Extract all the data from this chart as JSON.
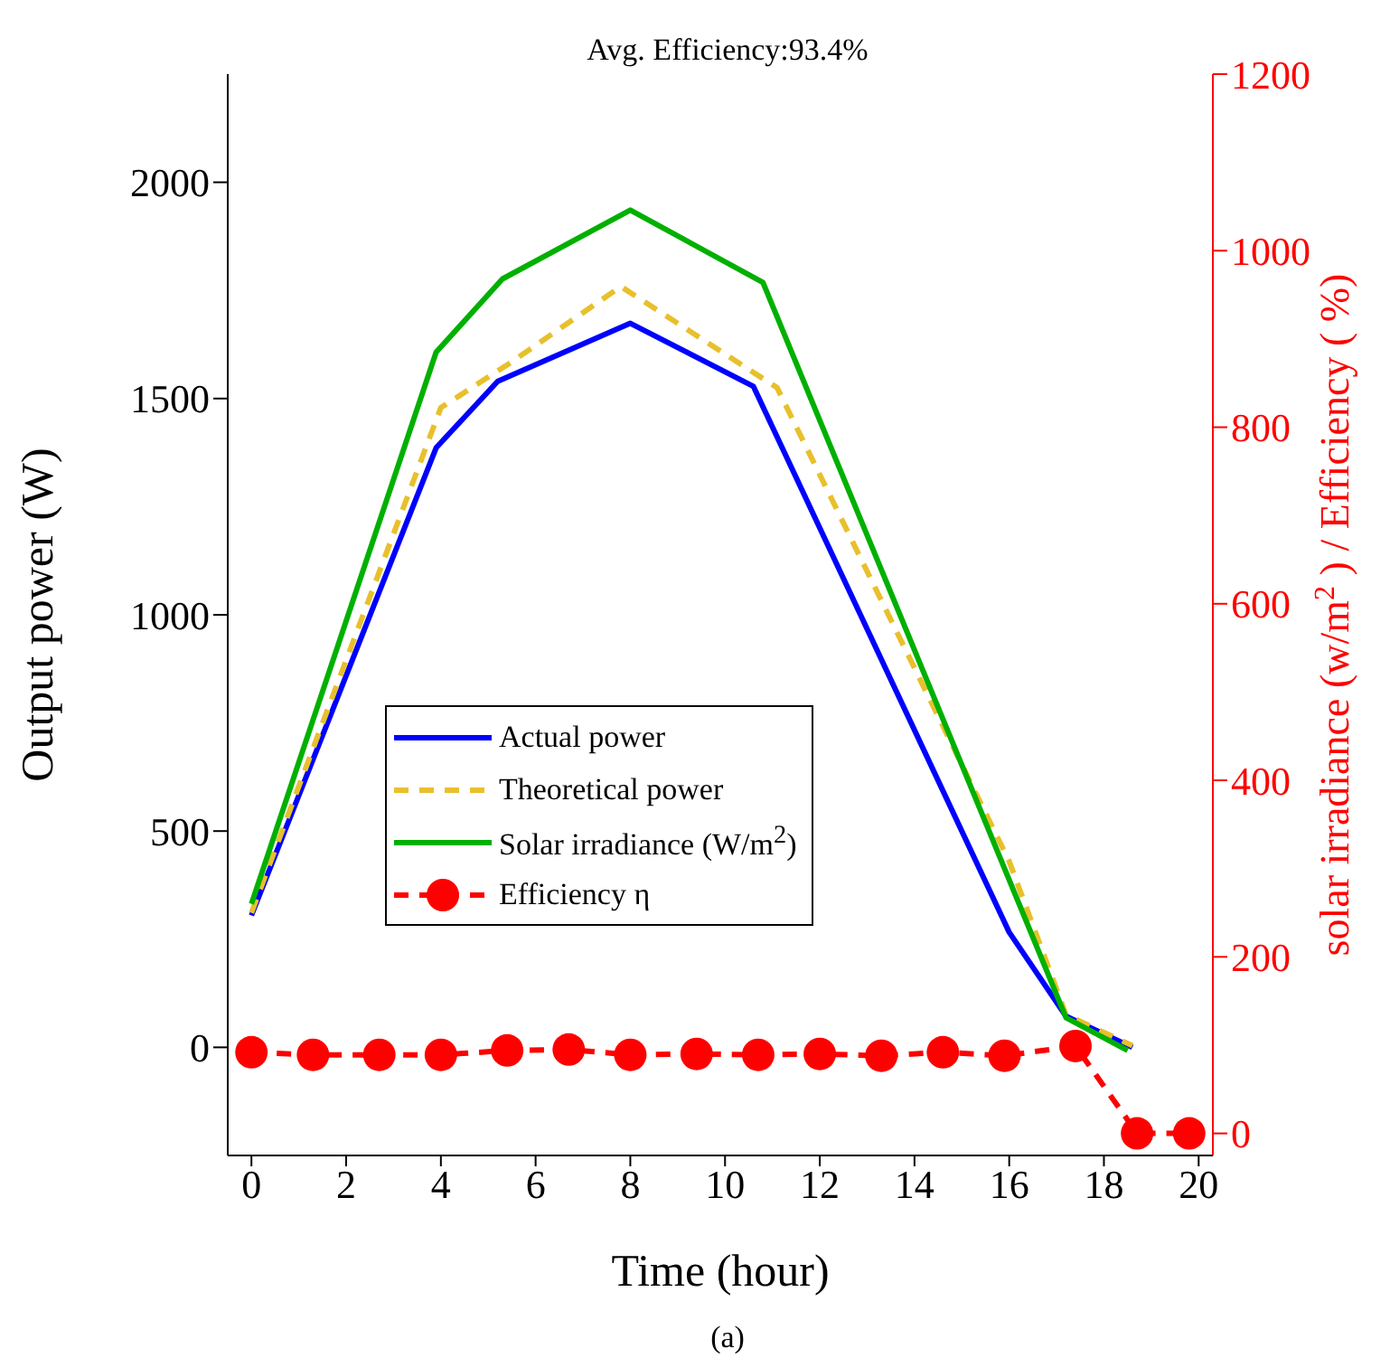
{
  "chart_data": {
    "type": "line",
    "title": "Avg. Efficiency:93.4%",
    "xlabel": "Time (hour)",
    "ylabel": "Output power (W)",
    "y2label": "solar irradiance (w/m$^{2}$) / Efficiency ( %)",
    "annotations": [
      "(a)"
    ],
    "xlim": [
      -0.5,
      20.3
    ],
    "xticks": [
      0,
      2,
      4,
      6,
      8,
      10,
      12,
      14,
      16,
      18,
      20
    ],
    "ylim": [
      -250,
      2250
    ],
    "yticks": [
      0,
      500,
      1000,
      1500,
      2000
    ],
    "y2lim": [
      -25,
      1200
    ],
    "y2ticks": [
      0,
      200,
      400,
      600,
      800,
      1000,
      1200
    ],
    "legend": "left",
    "series": [
      {
        "name": "Actual power",
        "color": "#0000ff",
        "line_style": "solid",
        "marker": "none",
        "x": [
          0,
          3.9,
          5.2,
          8,
          10.6,
          16,
          17.2,
          18.6
        ],
        "values": [
          305,
          1386,
          1540,
          1674,
          1528,
          266,
          72,
          0
        ]
      },
      {
        "name": "Theoretical power",
        "color": "#e8c02c",
        "line_style": "dashed",
        "marker": "none",
        "x": [
          0,
          4,
          5.5,
          7.8,
          11.1,
          16,
          17.2,
          18.6
        ],
        "values": [
          311,
          1479,
          1585,
          1759,
          1525,
          430,
          75,
          4
        ]
      },
      {
        "name": "Solar irradiance (W/m$^{2}$)",
        "color": "#00b000",
        "line_style": "solid",
        "marker": "none",
        "axis": "y2",
        "x": [
          0,
          3.9,
          5.3,
          8,
          10.8,
          17.2,
          18.5
        ],
        "values": [
          260,
          885,
          968,
          1046,
          964,
          131,
          94
        ]
      },
      {
        "name": "Efficiency η",
        "color": "#ff0000",
        "line_style": "dashed",
        "marker": "circle",
        "axis": "y2",
        "x": [
          0,
          1.3,
          2.7,
          4,
          5.4,
          6.7,
          8,
          9.4,
          10.7,
          12,
          13.3,
          14.6,
          15.9,
          17.4,
          18.7,
          19.8
        ],
        "values": [
          92,
          89,
          89,
          89,
          94,
          95,
          89,
          90,
          89,
          90,
          88,
          92,
          88,
          99,
          0,
          0
        ]
      }
    ]
  }
}
